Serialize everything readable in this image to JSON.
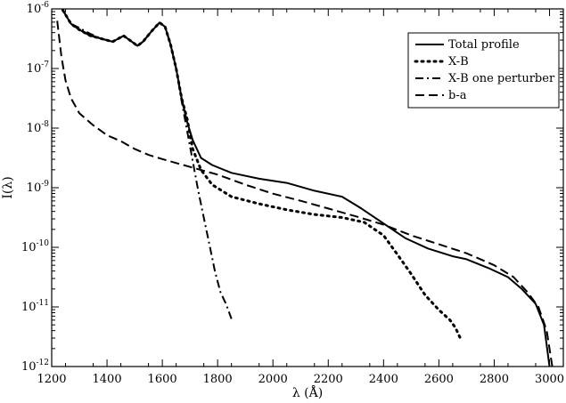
{
  "chart_data": {
    "type": "line",
    "xlabel": "λ (Å)",
    "ylabel": "I(λ)",
    "xlim": [
      1200,
      3050
    ],
    "ylim_exp": [
      -12,
      -6
    ],
    "yscale": "log",
    "x_ticks": [
      "1200",
      "1400",
      "1600",
      "1800",
      "2000",
      "2200",
      "2400",
      "2600",
      "2800",
      "3000"
    ],
    "x_tick_values": [
      1200,
      1400,
      1600,
      1800,
      2000,
      2200,
      2400,
      2600,
      2800,
      3000
    ],
    "y_tick_exponents": [
      -6,
      -7,
      -8,
      -9,
      -10,
      -11,
      -12
    ],
    "y_tick_base": "10",
    "legend_position": "top-right",
    "series": [
      {
        "name": "Total profile",
        "style": "solid",
        "color": "#000000",
        "points": [
          [
            1240,
            -6.02
          ],
          [
            1270,
            -6.25
          ],
          [
            1300,
            -6.35
          ],
          [
            1340,
            -6.45
          ],
          [
            1380,
            -6.5
          ],
          [
            1420,
            -6.55
          ],
          [
            1460,
            -6.45
          ],
          [
            1490,
            -6.55
          ],
          [
            1510,
            -6.62
          ],
          [
            1530,
            -6.55
          ],
          [
            1560,
            -6.38
          ],
          [
            1590,
            -6.23
          ],
          [
            1610,
            -6.3
          ],
          [
            1630,
            -6.6
          ],
          [
            1650,
            -7.0
          ],
          [
            1670,
            -7.5
          ],
          [
            1690,
            -7.9
          ],
          [
            1710,
            -8.2
          ],
          [
            1740,
            -8.5
          ],
          [
            1780,
            -8.62
          ],
          [
            1850,
            -8.75
          ],
          [
            1950,
            -8.85
          ],
          [
            2050,
            -8.92
          ],
          [
            2150,
            -9.05
          ],
          [
            2250,
            -9.15
          ],
          [
            2320,
            -9.35
          ],
          [
            2400,
            -9.6
          ],
          [
            2480,
            -9.85
          ],
          [
            2560,
            -10.02
          ],
          [
            2650,
            -10.15
          ],
          [
            2700,
            -10.2
          ],
          [
            2780,
            -10.35
          ],
          [
            2850,
            -10.5
          ],
          [
            2900,
            -10.7
          ],
          [
            2950,
            -10.95
          ],
          [
            2980,
            -11.3
          ],
          [
            3000,
            -12.0
          ]
        ]
      },
      {
        "name": "X-B",
        "style": "dotted",
        "color": "#000000",
        "points": [
          [
            1240,
            -6.02
          ],
          [
            1270,
            -6.25
          ],
          [
            1300,
            -6.35
          ],
          [
            1340,
            -6.45
          ],
          [
            1380,
            -6.5
          ],
          [
            1420,
            -6.55
          ],
          [
            1460,
            -6.45
          ],
          [
            1490,
            -6.55
          ],
          [
            1510,
            -6.62
          ],
          [
            1530,
            -6.55
          ],
          [
            1560,
            -6.38
          ],
          [
            1590,
            -6.23
          ],
          [
            1610,
            -6.3
          ],
          [
            1630,
            -6.6
          ],
          [
            1650,
            -7.0
          ],
          [
            1670,
            -7.5
          ],
          [
            1690,
            -7.85
          ],
          [
            1710,
            -8.35
          ],
          [
            1740,
            -8.7
          ],
          [
            1780,
            -8.95
          ],
          [
            1850,
            -9.15
          ],
          [
            1950,
            -9.27
          ],
          [
            2050,
            -9.37
          ],
          [
            2150,
            -9.45
          ],
          [
            2250,
            -9.5
          ],
          [
            2330,
            -9.58
          ],
          [
            2400,
            -9.8
          ],
          [
            2450,
            -10.12
          ],
          [
            2500,
            -10.45
          ],
          [
            2550,
            -10.8
          ],
          [
            2600,
            -11.05
          ],
          [
            2640,
            -11.22
          ],
          [
            2660,
            -11.35
          ],
          [
            2680,
            -11.55
          ]
        ]
      },
      {
        "name": "X-B one perturber",
        "style": "dashdot",
        "color": "#000000",
        "points": [
          [
            1240,
            -6.02
          ],
          [
            1270,
            -6.25
          ],
          [
            1300,
            -6.32
          ],
          [
            1340,
            -6.42
          ],
          [
            1380,
            -6.5
          ],
          [
            1420,
            -6.55
          ],
          [
            1460,
            -6.45
          ],
          [
            1490,
            -6.55
          ],
          [
            1510,
            -6.62
          ],
          [
            1530,
            -6.55
          ],
          [
            1560,
            -6.38
          ],
          [
            1590,
            -6.23
          ],
          [
            1610,
            -6.3
          ],
          [
            1630,
            -6.6
          ],
          [
            1650,
            -7.0
          ],
          [
            1670,
            -7.55
          ],
          [
            1690,
            -8.05
          ],
          [
            1710,
            -8.55
          ],
          [
            1730,
            -9.05
          ],
          [
            1750,
            -9.5
          ],
          [
            1770,
            -9.95
          ],
          [
            1790,
            -10.4
          ],
          [
            1810,
            -10.75
          ],
          [
            1830,
            -10.95
          ],
          [
            1850,
            -11.2
          ]
        ]
      },
      {
        "name": "b-a",
        "style": "dashed",
        "color": "#000000",
        "points": [
          [
            1220,
            -6.2
          ],
          [
            1235,
            -6.8
          ],
          [
            1250,
            -7.2
          ],
          [
            1270,
            -7.5
          ],
          [
            1300,
            -7.75
          ],
          [
            1350,
            -7.95
          ],
          [
            1400,
            -8.12
          ],
          [
            1450,
            -8.22
          ],
          [
            1500,
            -8.35
          ],
          [
            1550,
            -8.45
          ],
          [
            1600,
            -8.52
          ],
          [
            1700,
            -8.65
          ],
          [
            1800,
            -8.78
          ],
          [
            1900,
            -8.95
          ],
          [
            2000,
            -9.1
          ],
          [
            2100,
            -9.22
          ],
          [
            2200,
            -9.35
          ],
          [
            2300,
            -9.48
          ],
          [
            2400,
            -9.62
          ],
          [
            2500,
            -9.8
          ],
          [
            2600,
            -9.95
          ],
          [
            2700,
            -10.1
          ],
          [
            2800,
            -10.3
          ],
          [
            2870,
            -10.5
          ],
          [
            2920,
            -10.75
          ],
          [
            2960,
            -11.0
          ],
          [
            2990,
            -11.4
          ],
          [
            3010,
            -12.0
          ]
        ]
      }
    ]
  }
}
